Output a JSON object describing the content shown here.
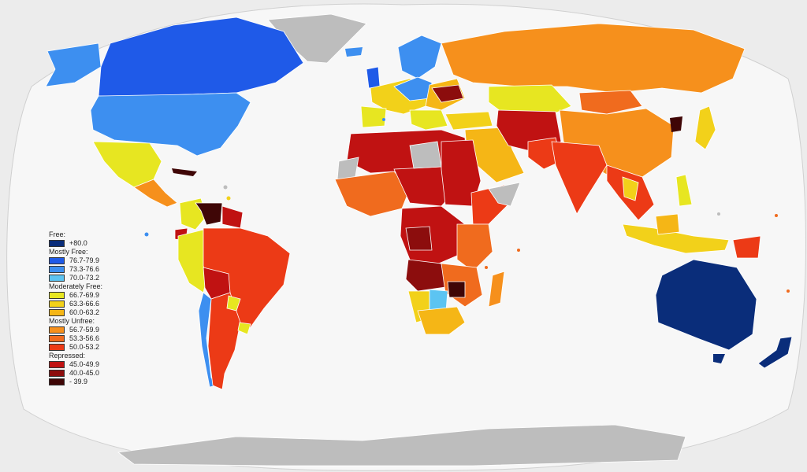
{
  "legend": {
    "categories": [
      {
        "title": "Free:",
        "entries": [
          {
            "label": "+80.0",
            "color": "#0a2d7a"
          }
        ]
      },
      {
        "title": "Mostly Free:",
        "entries": [
          {
            "label": "76.7-79.9",
            "color": "#1f5ae8"
          },
          {
            "label": "73.3-76.6",
            "color": "#3d8ff0"
          },
          {
            "label": "70.0-73.2",
            "color": "#5cc4f2"
          }
        ]
      },
      {
        "title": "Moderately Free:",
        "entries": [
          {
            "label": "66.7-69.9",
            "color": "#e7e621"
          },
          {
            "label": "63.3-66.6",
            "color": "#f2d11a"
          },
          {
            "label": "60.0-63.2",
            "color": "#f5b616"
          }
        ]
      },
      {
        "title": "Mostly Unfree:",
        "entries": [
          {
            "label": "56.7-59.9",
            "color": "#f6901c"
          },
          {
            "label": "53.3-56.6",
            "color": "#f06b1e"
          },
          {
            "label": "50.0-53.2",
            "color": "#ec3a16"
          }
        ]
      },
      {
        "title": "Repressed:",
        "entries": [
          {
            "label": "45.0-49.9",
            "color": "#c01212"
          },
          {
            "label": "40.0-45.0",
            "color": "#8c0d0d"
          },
          {
            "label": "- 39.9",
            "color": "#3f0606"
          }
        ]
      }
    ]
  },
  "colors": {
    "ocean": "#ececec",
    "globe": "#f7f7f7",
    "no_data": "#bdbdbd",
    "border": "#ffffff"
  }
}
